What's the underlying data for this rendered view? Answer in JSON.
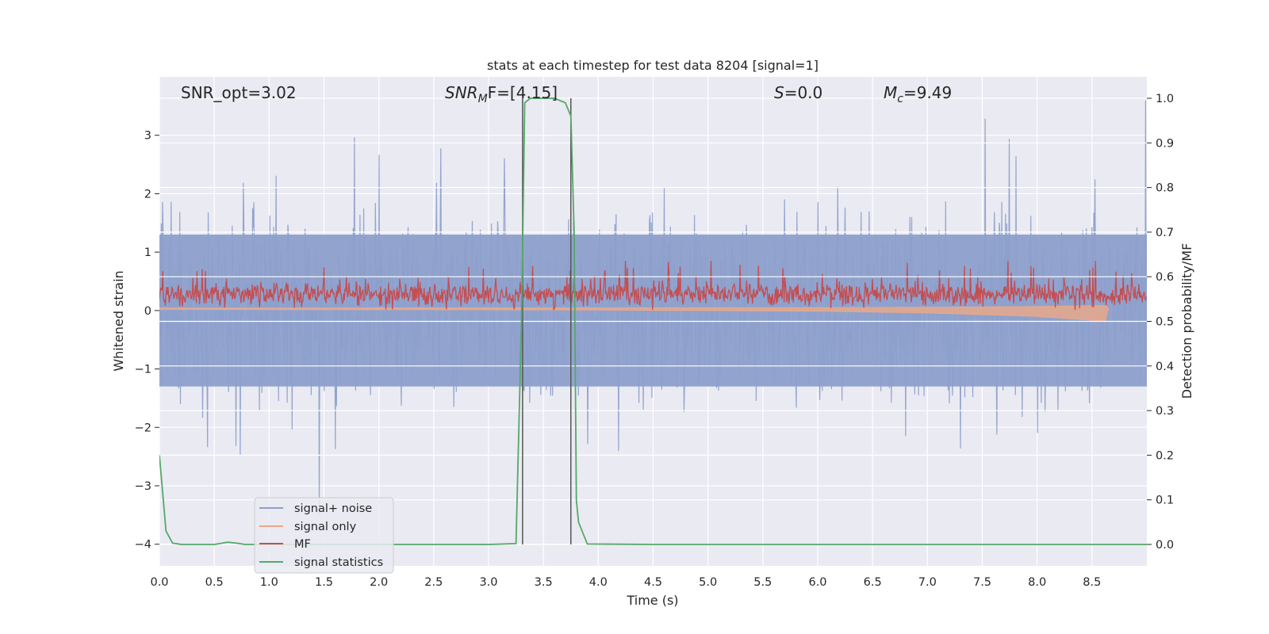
{
  "chart_data": {
    "type": "line",
    "title": "stats at each timestep for test data 8204 [signal=1]",
    "xlabel": "Time (s)",
    "ylabel_left": "Whitened strain",
    "ylabel_right": "Detection probability/MF",
    "xlim": [
      0.0,
      9.0
    ],
    "ylim_left": [
      -4.37,
      4.0
    ],
    "ylim_right": [
      -0.048,
      1.048
    ],
    "x_ticks": [
      "0.0",
      "0.5",
      "1.0",
      "1.5",
      "2.0",
      "2.5",
      "3.0",
      "3.5",
      "4.0",
      "4.5",
      "5.0",
      "5.5",
      "6.0",
      "6.5",
      "7.0",
      "7.5",
      "8.0",
      "8.5"
    ],
    "y_left_ticks": [
      "−4",
      "−3",
      "−2",
      "−1",
      "0",
      "1",
      "2",
      "3"
    ],
    "y_right_ticks": [
      "0.0",
      "0.1",
      "0.2",
      "0.3",
      "0.4",
      "0.5",
      "0.6",
      "0.7",
      "0.8",
      "0.9",
      "1.0"
    ],
    "annotations": {
      "snr_opt": "SNR_opt=3.02",
      "snr_mf_sym": "SNR",
      "snr_mf_sub": "M",
      "snr_mf_rest": "F=[4.15]",
      "s_sym": "S",
      "s_rest": "=0.0",
      "mc_sym": "M",
      "mc_sub": "c",
      "mc_rest": "=9.49"
    },
    "series": [
      {
        "name": "signal+ noise",
        "color": "#8da0cb",
        "axis": "left",
        "description_values": {
          "baseline_band": [
            -1.3,
            1.3
          ],
          "spike_max": 3.6,
          "spike_min": -4.0
        }
      },
      {
        "name": "signal only",
        "color": "#e8a88a",
        "axis": "left",
        "values_x": [
          0.0,
          4.0,
          6.0,
          7.0,
          8.0,
          8.6,
          8.65
        ],
        "values_amp": [
          0.02,
          0.03,
          0.05,
          0.08,
          0.14,
          0.22,
          0.25
        ]
      },
      {
        "name": "MF",
        "color": "#c44e52",
        "axis": "left",
        "description_values": {
          "band": [
            0.0,
            0.55
          ],
          "spike_max": 0.85
        }
      },
      {
        "name": "signal statistics",
        "color": "#55a868",
        "axis": "right",
        "x": [
          0.0,
          0.06,
          0.12,
          0.2,
          0.3,
          0.45,
          0.5,
          0.55,
          0.62,
          0.7,
          0.78,
          1.0,
          2.0,
          3.0,
          3.25,
          3.3,
          3.33,
          3.38,
          3.5,
          3.6,
          3.7,
          3.75,
          3.78,
          3.8,
          3.82,
          3.9,
          4.5,
          5.5,
          6.5,
          7.5,
          8.5,
          9.0
        ],
        "y": [
          0.2,
          0.03,
          0.003,
          0.0,
          0.0,
          0.0,
          0.0,
          0.002,
          0.005,
          0.003,
          0.0,
          0.0,
          0.0,
          0.0,
          0.002,
          0.5,
          0.99,
          1.0,
          1.0,
          1.0,
          0.99,
          0.96,
          0.7,
          0.1,
          0.05,
          0.001,
          0.0,
          0.0,
          0.0,
          0.0,
          0.0,
          0.0
        ]
      }
    ],
    "vlines": [
      3.31,
      3.75
    ],
    "legend": {
      "location": "lower-left",
      "entries": [
        "signal+ noise",
        "signal only",
        "MF",
        "signal statistics"
      ]
    }
  },
  "colors": {
    "background": "#eaeaf2",
    "grid": "#ffffff",
    "noise": "#8da0cb",
    "signal": "#e8a88a",
    "mf": "#c44e52",
    "stat": "#55a868",
    "vline": "#555555"
  }
}
